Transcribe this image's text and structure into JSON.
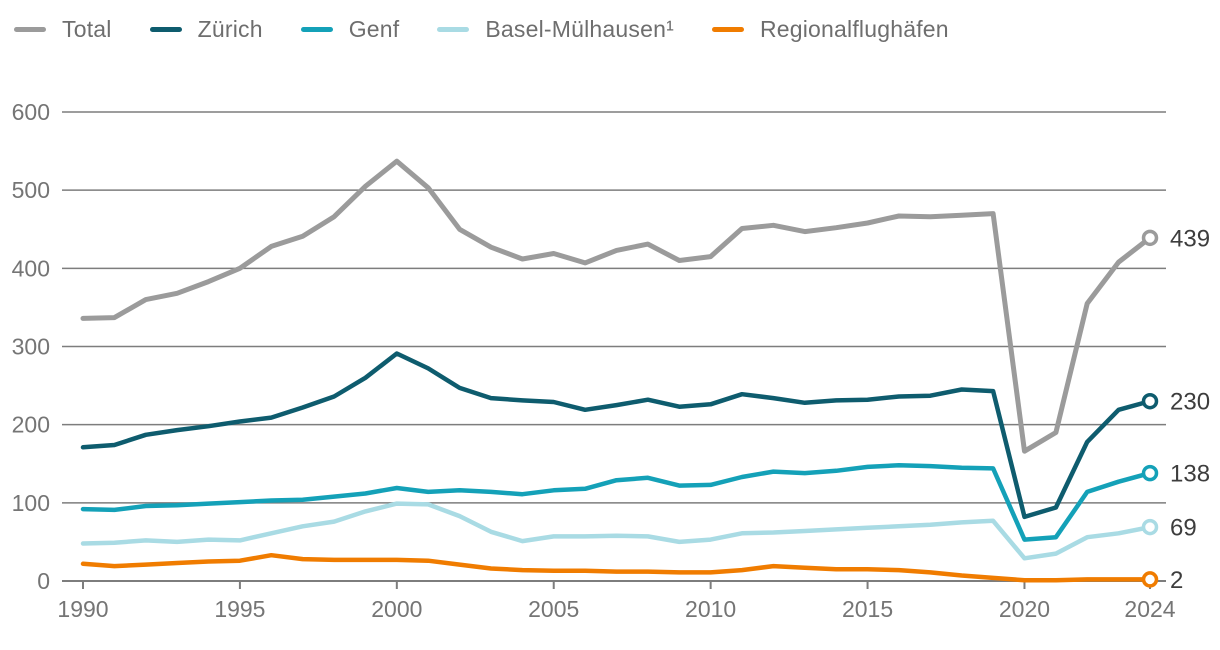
{
  "chart_data": {
    "type": "line",
    "title": "",
    "xlabel": "",
    "ylabel": "",
    "ylim": [
      0,
      600
    ],
    "grid": "horizontal",
    "legend_position": "top",
    "x": [
      1990,
      1991,
      1992,
      1993,
      1994,
      1995,
      1996,
      1997,
      1998,
      1999,
      2000,
      2001,
      2002,
      2003,
      2004,
      2005,
      2006,
      2007,
      2008,
      2009,
      2010,
      2011,
      2012,
      2013,
      2014,
      2015,
      2016,
      2017,
      2018,
      2019,
      2020,
      2021,
      2022,
      2023,
      2024
    ],
    "x_tick_labels": [
      "1990",
      "1995",
      "2000",
      "2005",
      "2010",
      "2015",
      "2020",
      "2024"
    ],
    "x_tick_years": [
      1990,
      1995,
      2000,
      2005,
      2010,
      2015,
      2020,
      2024
    ],
    "y_tick_labels": [
      "0",
      "100",
      "200",
      "300",
      "400",
      "500",
      "600"
    ],
    "y_tick_values": [
      0,
      100,
      200,
      300,
      400,
      500,
      600
    ],
    "series": [
      {
        "name": "Total",
        "color": "#9b9b9b",
        "end_label": "439",
        "values": [
          336,
          337,
          360,
          368,
          383,
          400,
          428,
          441,
          466,
          505,
          537,
          503,
          450,
          427,
          412,
          419,
          407,
          423,
          431,
          410,
          415,
          451,
          455,
          447,
          452,
          458,
          467,
          466,
          468,
          470,
          166,
          190,
          355,
          408,
          439
        ]
      },
      {
        "name": "Zürich",
        "color": "#0e5c6e",
        "end_label": "230",
        "values": [
          171,
          174,
          187,
          193,
          198,
          204,
          209,
          222,
          236,
          260,
          291,
          272,
          247,
          234,
          231,
          229,
          219,
          225,
          232,
          223,
          226,
          239,
          234,
          228,
          231,
          232,
          236,
          237,
          245,
          243,
          82,
          94,
          178,
          219,
          230
        ]
      },
      {
        "name": "Genf",
        "color": "#14a1b8",
        "end_label": "138",
        "values": [
          92,
          91,
          96,
          97,
          99,
          101,
          103,
          104,
          108,
          112,
          119,
          114,
          116,
          114,
          111,
          116,
          118,
          129,
          132,
          122,
          123,
          133,
          140,
          138,
          141,
          146,
          148,
          147,
          145,
          144,
          53,
          56,
          114,
          127,
          138
        ]
      },
      {
        "name": "Basel-Mülhausen¹",
        "color": "#a9dbe4",
        "end_label": "69",
        "values": [
          48,
          49,
          52,
          50,
          53,
          52,
          61,
          70,
          76,
          89,
          99,
          98,
          83,
          63,
          51,
          57,
          57,
          58,
          57,
          50,
          53,
          61,
          62,
          64,
          66,
          68,
          70,
          72,
          75,
          77,
          29,
          35,
          56,
          61,
          69
        ]
      },
      {
        "name": "Regionalflughäfen",
        "color": "#f07c00",
        "end_label": "2",
        "values": [
          22,
          19,
          21,
          23,
          25,
          26,
          33,
          28,
          27,
          27,
          27,
          26,
          21,
          16,
          14,
          13,
          13,
          12,
          12,
          11,
          11,
          14,
          19,
          17,
          15,
          15,
          14,
          11,
          7,
          4,
          1,
          1,
          2,
          2,
          2
        ]
      }
    ]
  },
  "colors": {
    "grid": "#7d7d7d",
    "axis": "#7d7d7d",
    "tick_text": "#757575",
    "end_label_text": "#3d3d3d",
    "legend_text": "#6e6e6e"
  }
}
